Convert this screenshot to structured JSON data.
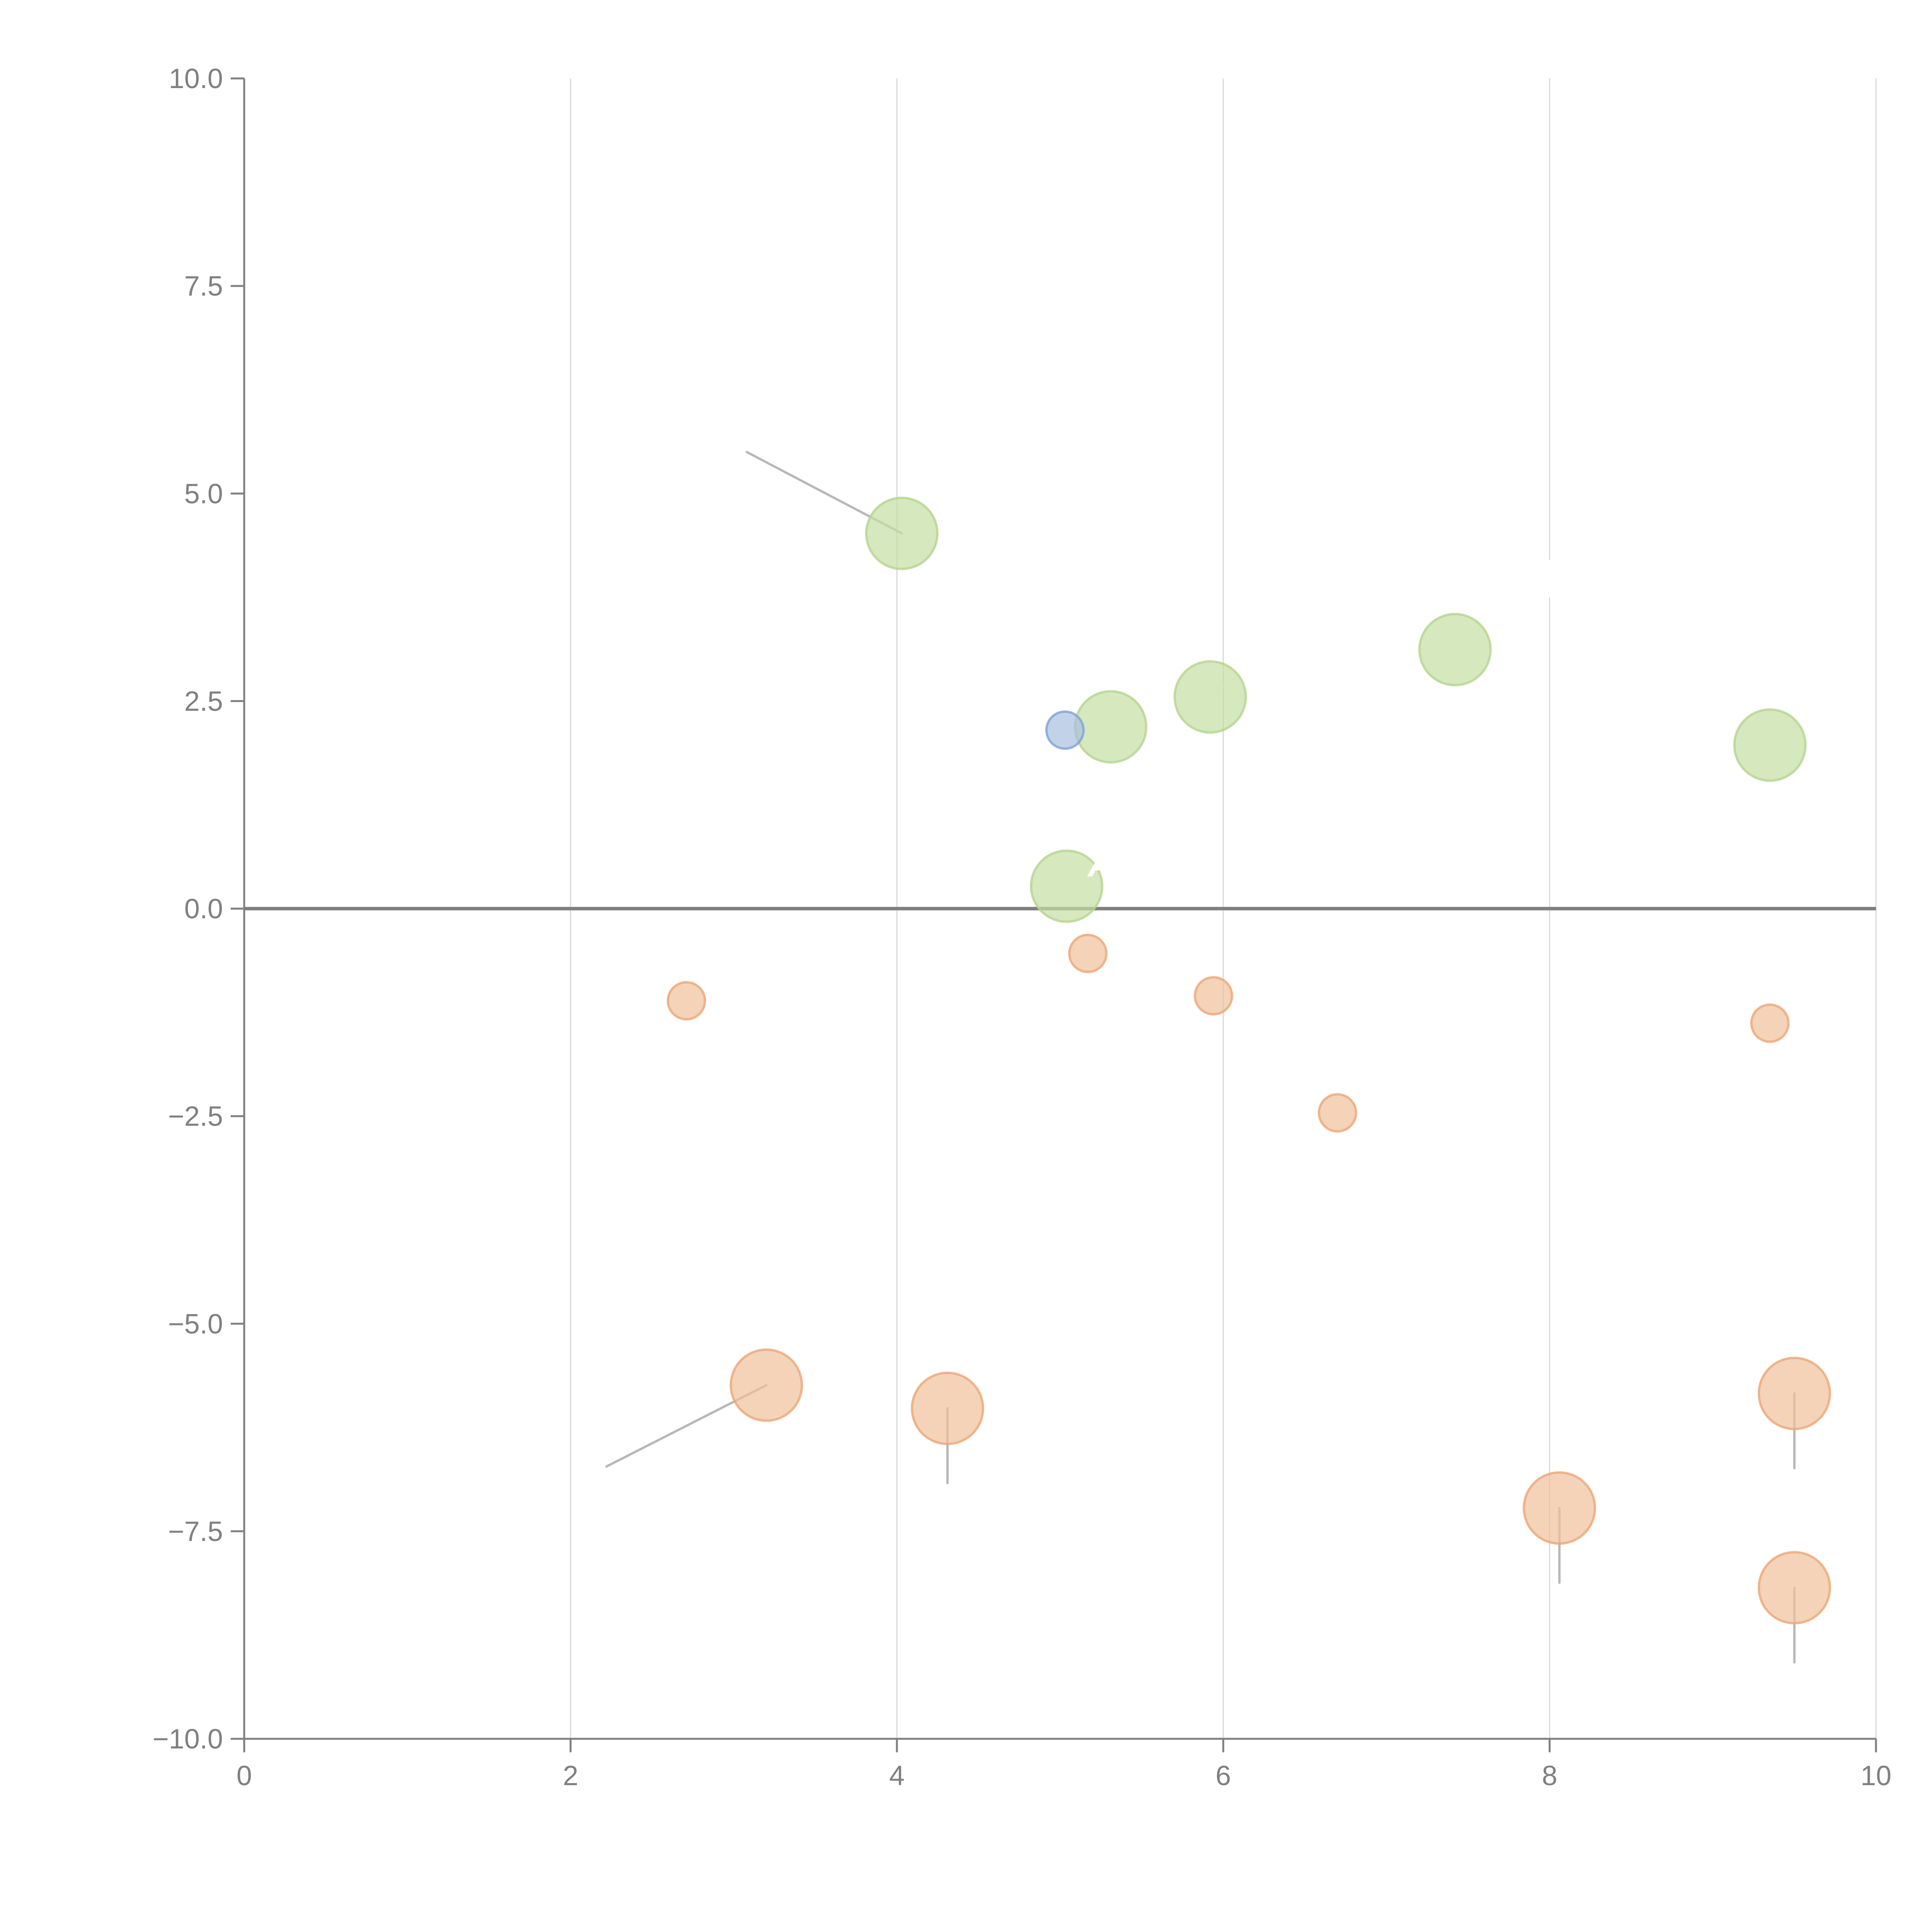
{
  "chart_data": {
    "type": "scatter",
    "title": "",
    "xlabel": "",
    "ylabel": "",
    "xlim": [
      0,
      10
    ],
    "ylim": [
      -10,
      10
    ],
    "grid": "vertical",
    "legend": "none",
    "x_ticks": [
      "0",
      "2",
      "4",
      "6",
      "8",
      "10"
    ],
    "x_tick_values": [
      0,
      2,
      4,
      6,
      8,
      10
    ],
    "y_ticks": [
      "10.0",
      "7.5",
      "5.0",
      "2.5",
      "0.0",
      "−2.5",
      "−5.0",
      "−7.5",
      "−10.0"
    ],
    "y_tick_values": [
      10,
      7.5,
      5,
      2.5,
      0,
      -2.5,
      -5,
      -7.5,
      -10
    ],
    "zero_line": 0,
    "colors": {
      "green": "#c5dea3",
      "green_edge": "#b4d48e",
      "orange": "#f0c09a",
      "orange_edge": "#eba676",
      "blue": "#a7bfe0",
      "blue_edge": "#7ea3d3",
      "axis": "#808080",
      "grid": "#d8d8d8",
      "connector": "#b8b8b8"
    },
    "series": [
      {
        "name": "green-large",
        "color": "green",
        "size": "large",
        "points": [
          {
            "x": 4.03,
            "y": 4.52,
            "label": "",
            "connector": {
              "dx": -0.95,
              "dy": 0.98,
              "color": "connector"
            }
          },
          {
            "x": 5.31,
            "y": 2.19,
            "label": "",
            "connector": {
              "dx": -0.02,
              "dy": 0.45,
              "color": "white"
            }
          },
          {
            "x": 5.92,
            "y": 2.55,
            "label": "",
            "connector": {
              "dx": 0.18,
              "dy": 0.25,
              "color": "white"
            }
          },
          {
            "x": 7.42,
            "y": 3.12,
            "label": "",
            "connector": {
              "dx": 0.16,
              "dy": 0.2,
              "color": "white"
            }
          },
          {
            "x": 9.35,
            "y": 1.97,
            "label": "",
            "connector": {
              "dx": 0.1,
              "dy": 0.35,
              "color": "white"
            }
          },
          {
            "x": 5.04,
            "y": 0.27,
            "label": "A",
            "connector": {
              "dx": 0.12,
              "dy": 0.05,
              "color": "white"
            }
          }
        ]
      },
      {
        "name": "blue-small",
        "color": "blue",
        "size": "small",
        "points": [
          {
            "x": 5.03,
            "y": 2.15
          }
        ]
      },
      {
        "name": "orange-small",
        "color": "orange",
        "size": "small",
        "points": [
          {
            "x": 2.71,
            "y": -1.11
          },
          {
            "x": 5.17,
            "y": -0.54
          },
          {
            "x": 5.94,
            "y": -1.05
          },
          {
            "x": 6.7,
            "y": -2.46
          },
          {
            "x": 9.35,
            "y": -1.38
          }
        ]
      },
      {
        "name": "orange-large",
        "color": "orange",
        "size": "large",
        "points": [
          {
            "x": 3.2,
            "y": -5.74,
            "connector": {
              "dx": -0.98,
              "dy": -0.98,
              "color": "connector"
            }
          },
          {
            "x": 4.31,
            "y": -6.02,
            "connector": {
              "dx": 0,
              "dy": -0.9,
              "color": "connector"
            }
          },
          {
            "x": 9.5,
            "y": -5.84,
            "connector": {
              "dx": 0,
              "dy": -0.9,
              "color": "connector"
            }
          },
          {
            "x": 8.06,
            "y": -7.22,
            "connector": {
              "dx": 0,
              "dy": -0.9,
              "color": "connector"
            }
          },
          {
            "x": 9.5,
            "y": -8.18,
            "connector": {
              "dx": 0,
              "dy": -0.9,
              "color": "connector"
            }
          }
        ]
      }
    ],
    "hidden_label_gap": {
      "x": 8,
      "y_from": 3.75,
      "y_to": 4.2
    }
  }
}
